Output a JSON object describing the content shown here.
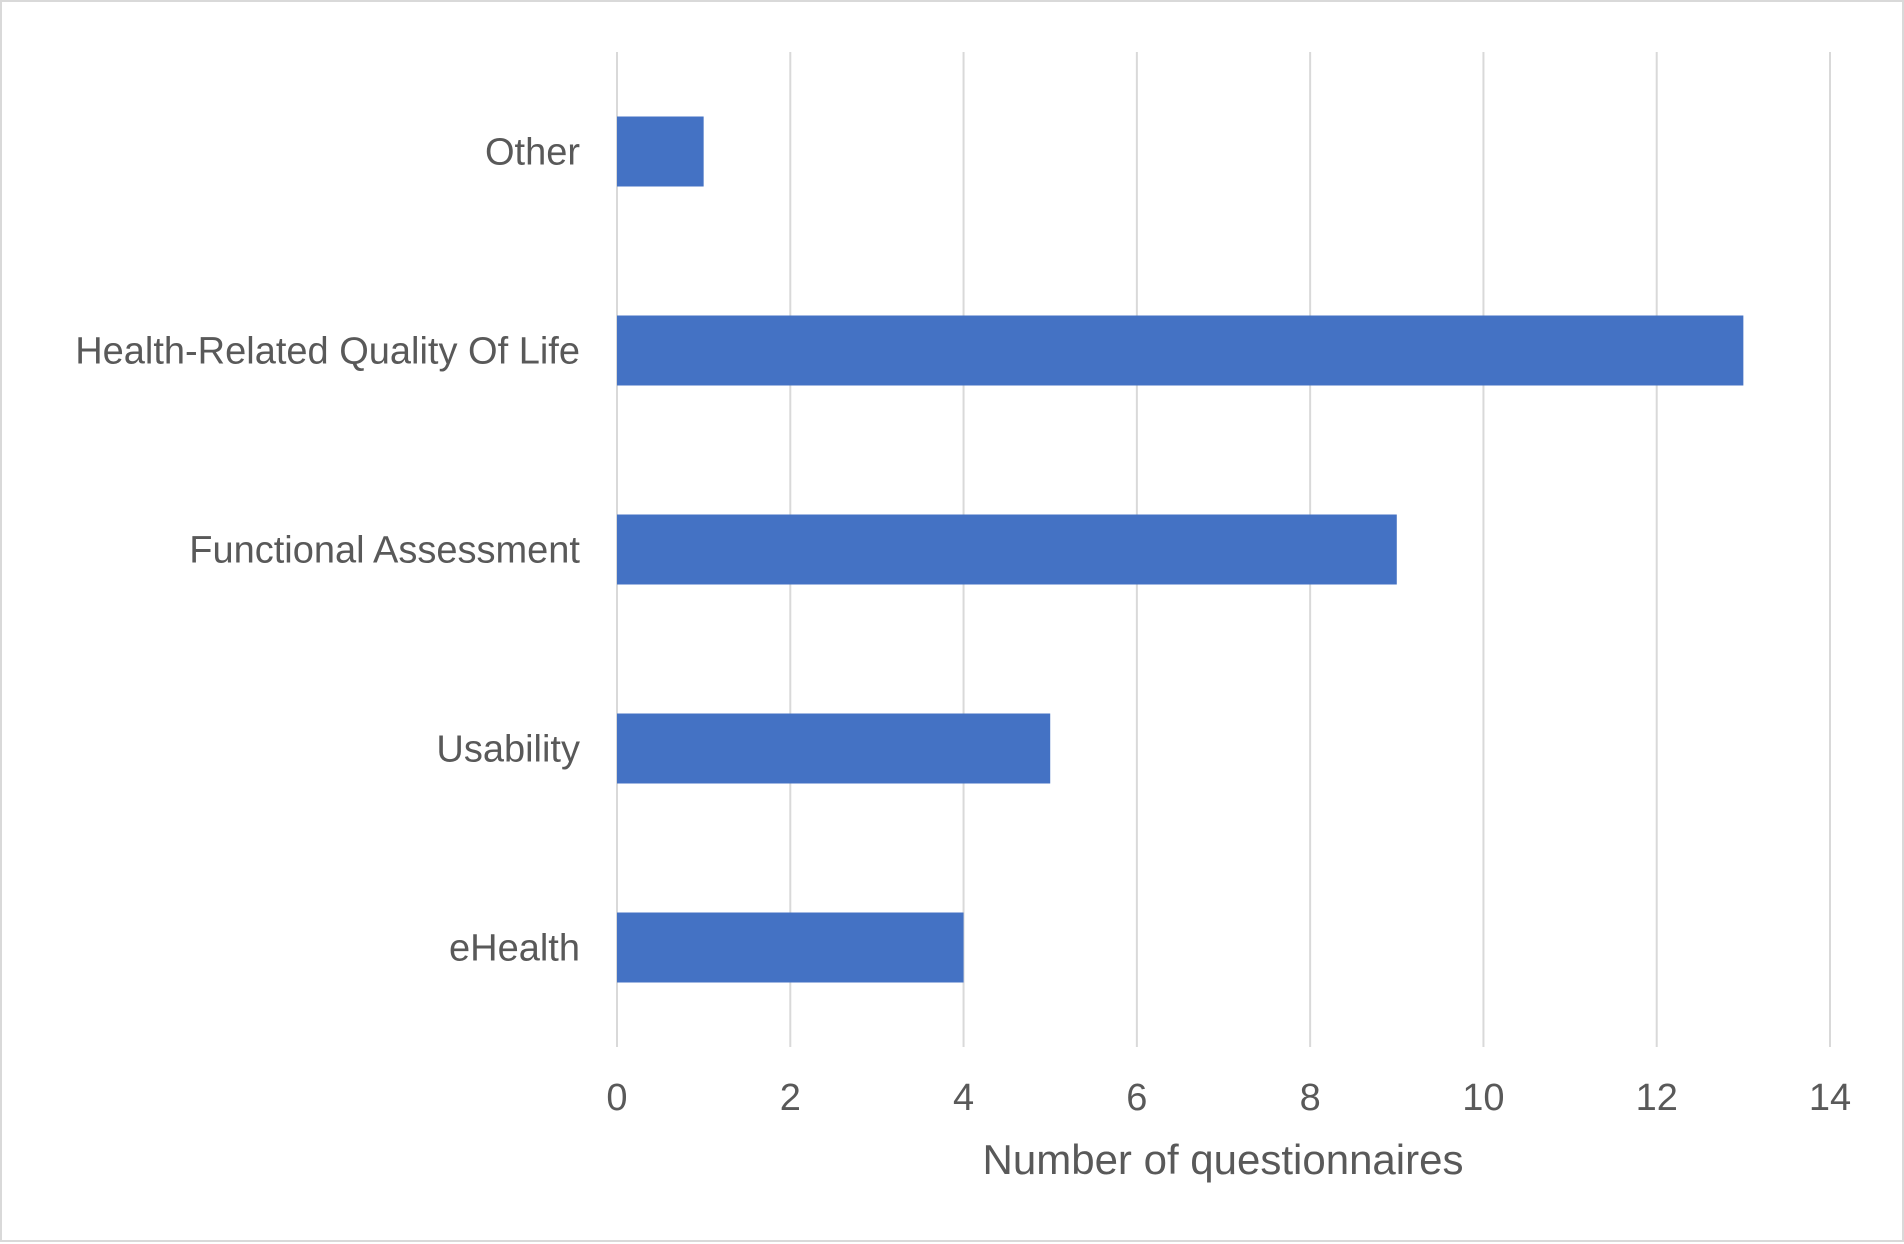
{
  "chart_data": {
    "type": "bar",
    "orientation": "horizontal",
    "categories": [
      "Other",
      "Health-Related Quality Of Life",
      "Functional Assessment",
      "Usability",
      "eHealth"
    ],
    "values": [
      1,
      13,
      9,
      5,
      4
    ],
    "title": "",
    "xlabel": "Number of questionnaires",
    "ylabel": "",
    "xlim": [
      0,
      14
    ],
    "x_ticks": [
      0,
      2,
      4,
      6,
      8,
      10,
      12,
      14
    ],
    "x_tick_labels": [
      "0",
      "2",
      "4",
      "6",
      "8",
      "10",
      "12",
      "14"
    ],
    "grid": "vertical",
    "legend": "none",
    "colors": {
      "bar": "#4472c4",
      "grid": "#d9d9d9",
      "text": "#595959",
      "border": "#d9d9d9"
    }
  }
}
